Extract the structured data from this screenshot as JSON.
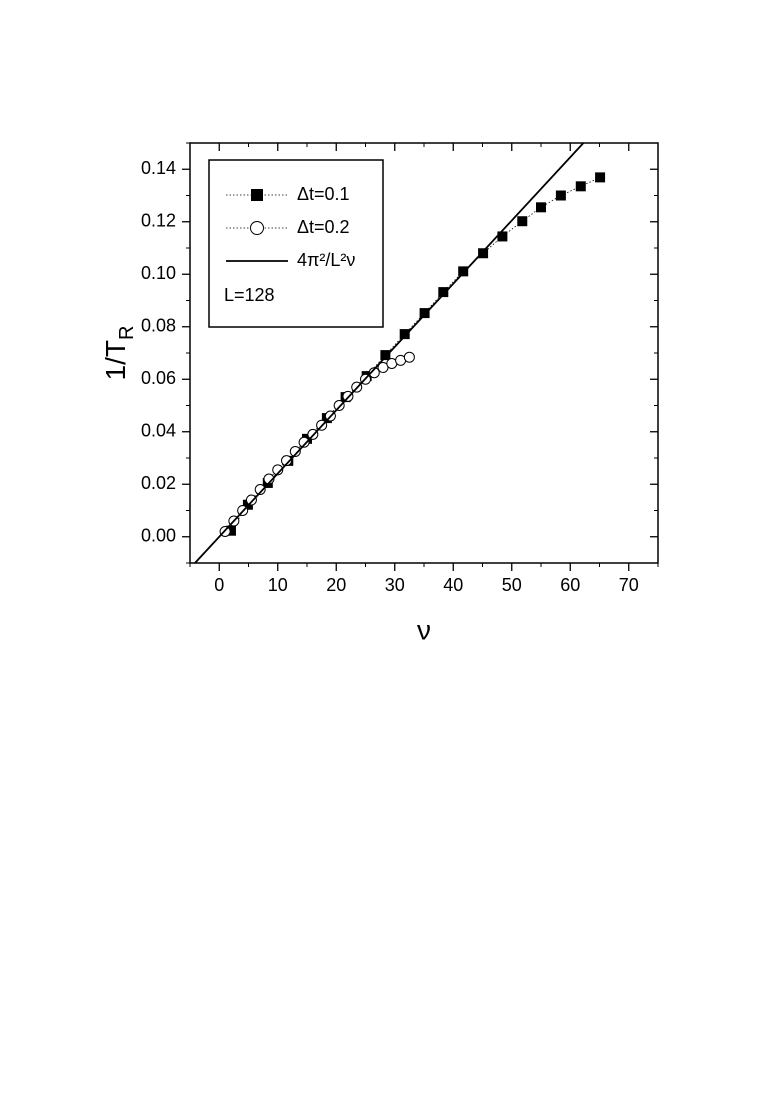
{
  "chart_data": {
    "type": "scatter",
    "x_label": "ν",
    "y_label": "1/T",
    "y_label_subscript": "R",
    "xlim": [
      -5,
      75
    ],
    "ylim": [
      -0.01,
      0.15
    ],
    "xticks": [
      0,
      10,
      20,
      30,
      40,
      50,
      60,
      70
    ],
    "xminorticks": [
      -5,
      5,
      15,
      25,
      35,
      45,
      55,
      65,
      75
    ],
    "yticks": [
      {
        "value": 0,
        "label": "0.00"
      },
      {
        "value": 0.02,
        "label": "0.02"
      },
      {
        "value": 0.04,
        "label": "0.04"
      },
      {
        "value": 0.06,
        "label": "0.06"
      },
      {
        "value": 0.08,
        "label": "0.08"
      },
      {
        "value": 0.1,
        "label": "0.10"
      },
      {
        "value": 0.12,
        "label": "0.12"
      },
      {
        "value": 0.14,
        "label": "0.14"
      }
    ],
    "yminorticks": [
      -0.01,
      0.01,
      0.03,
      0.05,
      0.07,
      0.09,
      0.11,
      0.13,
      0.15
    ],
    "series": [
      {
        "name": "Δt=0.1",
        "marker": "square",
        "color": "#000000",
        "connect": "dotted",
        "x": [
          2.0,
          4.9,
          8.3,
          11.8,
          15.0,
          18.4,
          21.6,
          25.2,
          28.4,
          31.7,
          35.1,
          38.3,
          41.7,
          45.1,
          48.4,
          51.8,
          55.0,
          58.4,
          61.8,
          65.1
        ],
        "values": [
          0.0023,
          0.0122,
          0.0205,
          0.0289,
          0.0373,
          0.0452,
          0.0532,
          0.0612,
          0.0692,
          0.0772,
          0.0852,
          0.0932,
          0.1011,
          0.108,
          0.1144,
          0.1202,
          0.1255,
          0.13,
          0.1335,
          0.1369
        ]
      },
      {
        "name": "Δt=0.2",
        "marker": "circle",
        "color": "#000000",
        "connect": "dotted",
        "x": [
          1,
          2.5,
          4,
          5.5,
          7,
          8.5,
          10,
          11.5,
          13,
          14.5,
          16,
          17.5,
          19,
          20.5,
          22,
          23.5,
          25,
          26.5,
          28,
          29.5,
          31,
          32.5
        ],
        "values": [
          0.002,
          0.006,
          0.01,
          0.014,
          0.018,
          0.022,
          0.0255,
          0.029,
          0.0325,
          0.036,
          0.039,
          0.0425,
          0.046,
          0.05,
          0.0535,
          0.057,
          0.06,
          0.0625,
          0.0645,
          0.066,
          0.0672,
          0.0684
        ]
      },
      {
        "name": "4π²/L²ν",
        "marker": "none",
        "color": "#000000",
        "connect": "solid",
        "x": [
          -4.15,
          62.25
        ],
        "values": [
          -0.01,
          0.15
        ]
      }
    ],
    "annotation": "L=128"
  }
}
